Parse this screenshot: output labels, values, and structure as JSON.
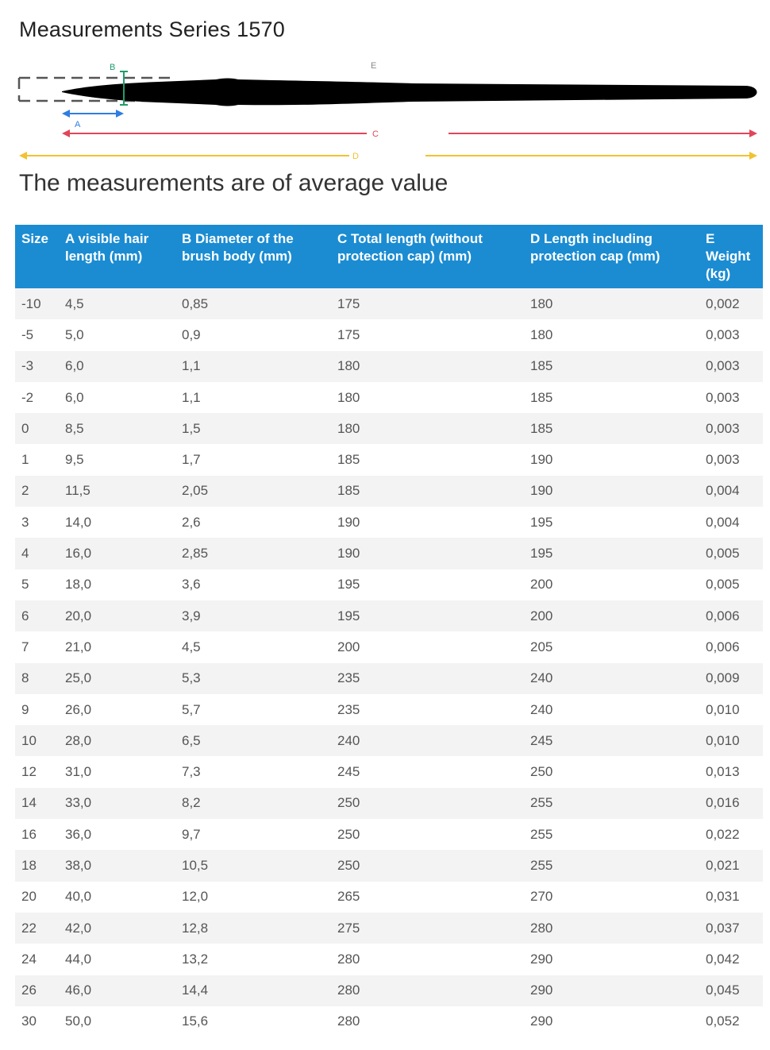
{
  "title": "Measurements Series 1570",
  "subtitle": "The measurements are of average value",
  "diagram": {
    "label_a": "A",
    "label_b": "B",
    "label_c": "C",
    "label_d": "D",
    "label_e": "E",
    "colors": {
      "a": "#2f7de1",
      "b": "#1e9e6a",
      "c": "#e0465a",
      "d": "#f2c230",
      "brush": "#000000"
    }
  },
  "table": {
    "headers": [
      "Size",
      "A visible hair length (mm)",
      "B Diameter of the brush body (mm)",
      "C Total length (without protection cap) (mm)",
      "D Length including protection cap (mm)",
      "E Weight (kg)"
    ],
    "rows": [
      [
        "-10",
        "4,5",
        "0,85",
        "175",
        "180",
        "0,002"
      ],
      [
        "-5",
        "5,0",
        "0,9",
        "175",
        "180",
        "0,003"
      ],
      [
        "-3",
        "6,0",
        "1,1",
        "180",
        "185",
        "0,003"
      ],
      [
        "-2",
        "6,0",
        "1,1",
        "180",
        "185",
        "0,003"
      ],
      [
        "0",
        "8,5",
        "1,5",
        "180",
        "185",
        "0,003"
      ],
      [
        "1",
        "9,5",
        "1,7",
        "185",
        "190",
        "0,003"
      ],
      [
        "2",
        "11,5",
        "2,05",
        "185",
        "190",
        "0,004"
      ],
      [
        "3",
        "14,0",
        "2,6",
        "190",
        "195",
        "0,004"
      ],
      [
        "4",
        "16,0",
        "2,85",
        "190",
        "195",
        "0,005"
      ],
      [
        "5",
        "18,0",
        "3,6",
        "195",
        "200",
        "0,005"
      ],
      [
        "6",
        "20,0",
        "3,9",
        "195",
        "200",
        "0,006"
      ],
      [
        "7",
        "21,0",
        "4,5",
        "200",
        "205",
        "0,006"
      ],
      [
        "8",
        "25,0",
        "5,3",
        "235",
        "240",
        "0,009"
      ],
      [
        "9",
        "26,0",
        "5,7",
        "235",
        "240",
        "0,010"
      ],
      [
        "10",
        "28,0",
        "6,5",
        "240",
        "245",
        "0,010"
      ],
      [
        "12",
        "31,0",
        "7,3",
        "245",
        "250",
        "0,013"
      ],
      [
        "14",
        "33,0",
        "8,2",
        "250",
        "255",
        "0,016"
      ],
      [
        "16",
        "36,0",
        "9,7",
        "250",
        "255",
        "0,022"
      ],
      [
        "18",
        "38,0",
        "10,5",
        "250",
        "255",
        "0,021"
      ],
      [
        "20",
        "40,0",
        "12,0",
        "265",
        "270",
        "0,031"
      ],
      [
        "22",
        "42,0",
        "12,8",
        "275",
        "280",
        "0,037"
      ],
      [
        "24",
        "44,0",
        "13,2",
        "280",
        "290",
        "0,042"
      ],
      [
        "26",
        "46,0",
        "14,4",
        "280",
        "290",
        "0,045"
      ],
      [
        "30",
        "50,0",
        "15,6",
        "280",
        "290",
        "0,052"
      ]
    ]
  }
}
